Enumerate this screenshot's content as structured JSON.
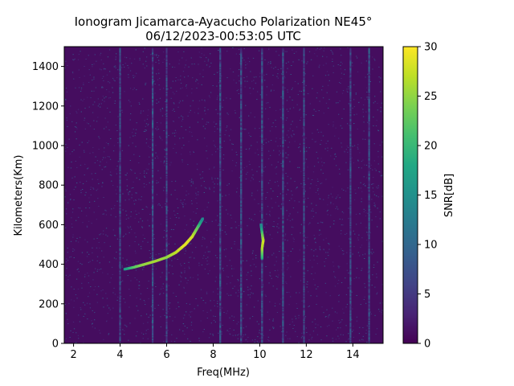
{
  "chart_data": {
    "type": "heatmap",
    "title_line1": "Ionogram Jicamarca-Ayacucho Polarization NE45°",
    "title_line2": "06/12/2023-00:53:05 UTC",
    "xlabel": "Freq(MHz)",
    "ylabel": "Kilometers(Km)",
    "xlim": [
      1.6,
      15.3
    ],
    "ylim": [
      0,
      1500
    ],
    "xticks": [
      "2",
      "4",
      "6",
      "8",
      "10",
      "12",
      "14"
    ],
    "yticks": [
      "0",
      "200",
      "400",
      "600",
      "800",
      "1000",
      "1200",
      "1400"
    ],
    "colorbar": {
      "label": "SNR[dB]",
      "range": [
        0,
        30
      ],
      "ticks": [
        "0",
        "5",
        "10",
        "15",
        "20",
        "25",
        "30"
      ],
      "colormap": "viridis"
    },
    "background_snr_db": 1,
    "vertical_interference_bands_mhz": [
      4.0,
      5.4,
      6.0,
      8.3,
      9.2,
      10.1,
      11.0,
      11.9,
      13.9,
      14.7
    ],
    "echo_trace": {
      "description_free": true,
      "points": [
        {
          "freq": 4.2,
          "km": 375,
          "snr": 16
        },
        {
          "freq": 4.6,
          "km": 385,
          "snr": 22
        },
        {
          "freq": 5.0,
          "km": 398,
          "snr": 25
        },
        {
          "freq": 5.5,
          "km": 415,
          "snr": 26
        },
        {
          "freq": 6.0,
          "km": 435,
          "snr": 25
        },
        {
          "freq": 6.4,
          "km": 460,
          "snr": 27
        },
        {
          "freq": 6.8,
          "km": 500,
          "snr": 29
        },
        {
          "freq": 7.1,
          "km": 540,
          "snr": 28
        },
        {
          "freq": 7.35,
          "km": 590,
          "snr": 22
        },
        {
          "freq": 7.55,
          "km": 630,
          "snr": 14
        }
      ]
    },
    "secondary_echo": {
      "points": [
        {
          "freq": 10.1,
          "km": 430,
          "snr": 18
        },
        {
          "freq": 10.1,
          "km": 480,
          "snr": 26
        },
        {
          "freq": 10.15,
          "km": 520,
          "snr": 28
        },
        {
          "freq": 10.1,
          "km": 560,
          "snr": 22
        },
        {
          "freq": 10.05,
          "km": 600,
          "snr": 14
        }
      ]
    }
  }
}
